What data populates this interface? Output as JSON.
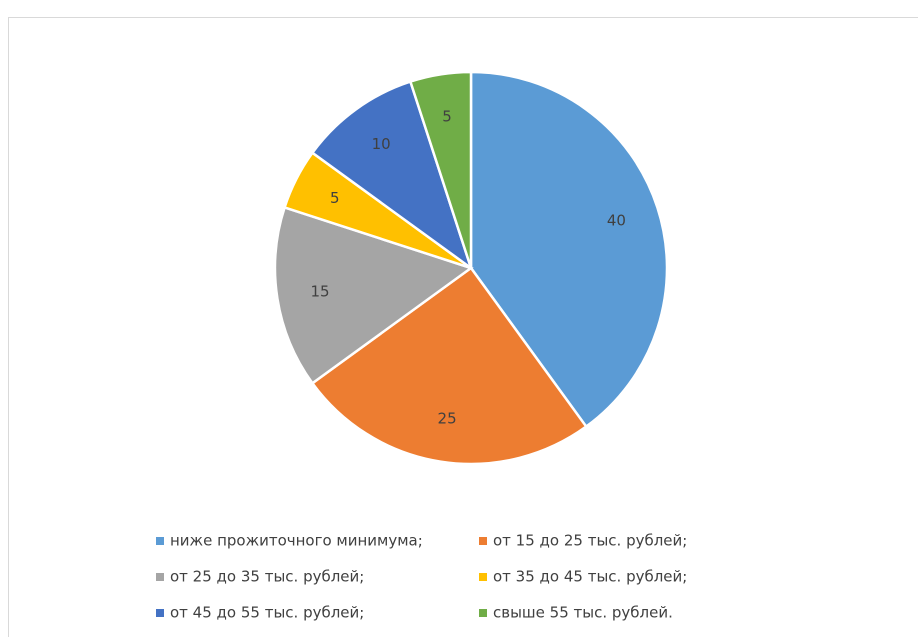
{
  "chart_data": {
    "type": "pie",
    "categories": [
      "ниже прожиточного минимума;",
      "от 15 до 25 тыс. рублей;",
      "от 25 до 35 тыс. рублей;",
      "от 35 до 45 тыс. рублей;",
      "от 45 до 55 тыс. рублей;",
      "свыше 55 тыс. рублей."
    ],
    "values": [
      40,
      25,
      15,
      5,
      10,
      5
    ],
    "colors": [
      "#5b9bd5",
      "#ed7d31",
      "#a5a5a5",
      "#ffc000",
      "#4472c4",
      "#70ad47"
    ],
    "legend": "bottom"
  }
}
